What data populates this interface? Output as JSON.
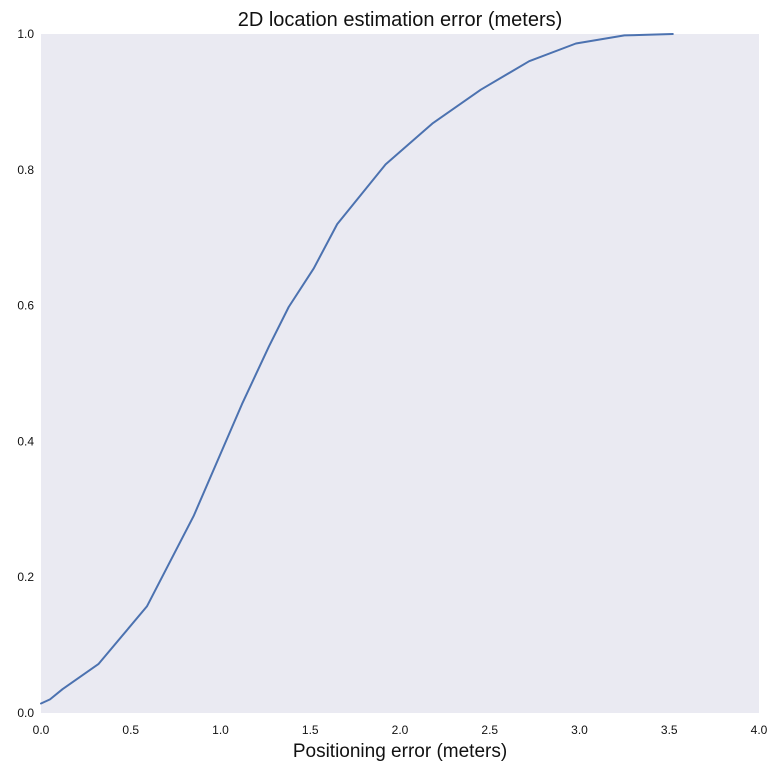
{
  "chart_data": {
    "type": "line",
    "title": "2D location estimation error (meters)",
    "xlabel": "Positioning error (meters)",
    "ylabel": "",
    "xlim": [
      0.0,
      4.0
    ],
    "ylim": [
      0.0,
      1.0
    ],
    "x_ticks": [
      "0.0",
      "0.5",
      "1.0",
      "1.5",
      "2.0",
      "2.5",
      "3.0",
      "3.5",
      "4.0"
    ],
    "y_ticks": [
      "0.0",
      "0.2",
      "0.4",
      "0.6",
      "0.8",
      "1.0"
    ],
    "grid": false,
    "legend": "none",
    "series": [
      {
        "color": "#4c72b0",
        "x": [
          0.0,
          0.05,
          0.12,
          0.32,
          0.59,
          0.85,
          1.12,
          1.27,
          1.38,
          1.52,
          1.65,
          1.92,
          2.18,
          2.45,
          2.72,
          2.98,
          3.25,
          3.52
        ],
        "y": [
          0.014,
          0.02,
          0.035,
          0.072,
          0.157,
          0.29,
          0.455,
          0.54,
          0.598,
          0.655,
          0.72,
          0.808,
          0.868,
          0.918,
          0.96,
          0.986,
          0.998,
          1.0
        ]
      }
    ]
  },
  "colors": {
    "plot_background": "#eaeaf2",
    "line": "#4c72b0"
  }
}
